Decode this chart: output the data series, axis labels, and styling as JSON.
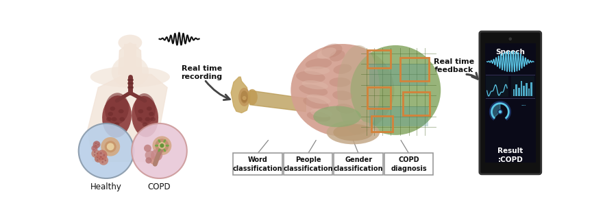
{
  "bg_color": "#ffffff",
  "labels_bottom": [
    "Word\nclassification",
    "People\nclassification",
    "Gender\nclassification",
    "COPD\ndiagnosis"
  ],
  "label_healthy": "Healthy",
  "label_copd": "COPD",
  "label_rt_recording": "Real time\nrecording",
  "label_rt_feedback": "Real time\nfeedback",
  "label_speech": "Speech",
  "label_result": "Result\n:COPD",
  "box_color": "#ffffff",
  "box_edge_color": "#999999",
  "text_color": "#111111",
  "arrow_color": "#555555",
  "phone_bg": "#111111",
  "waveform_color": "#5bc8e8",
  "fig_width": 8.99,
  "fig_height": 2.93,
  "dpi": 100,
  "body_skin": "#f2e4d8",
  "lung_dark": "#8B3A3A",
  "lung_mid": "#A0522D",
  "healthy_circle_bg": "#b8cfe8",
  "copd_circle_bg": "#e8c8d8",
  "brain_pink": "#d4a090",
  "brain_fold": "#c08878",
  "brain_circuit": "#8aaa68",
  "circuit_line": "#4a6828",
  "chip_orange": "#d4823a",
  "chip_teal": "#5a9898",
  "ear_tan": "#c8a860",
  "stem_tan": "#b89850",
  "cereb_color": "#c4a888",
  "green_patch": "#8aaa70"
}
